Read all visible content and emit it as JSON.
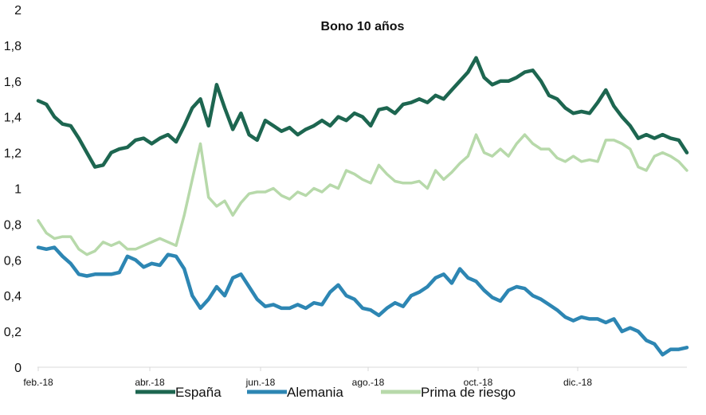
{
  "chart_data": {
    "type": "line",
    "title": "Bono 10 años",
    "xlabel": "",
    "ylabel": "",
    "ylim": [
      0,
      2
    ],
    "yticks": [
      "0",
      "0,2",
      "0,4",
      "0,6",
      "0,8",
      "1",
      "1,2",
      "1,4",
      "1,6",
      "1,8",
      "2"
    ],
    "xticks": [
      "feb.-18",
      "abr.-18",
      "jun.-18",
      "ago.-18",
      "oct.-18",
      "dic.-18"
    ],
    "grid": false,
    "legend": "bottom",
    "series": [
      {
        "name": "España",
        "color": "#1d6650",
        "values": [
          1.49,
          1.47,
          1.4,
          1.36,
          1.35,
          1.28,
          1.2,
          1.12,
          1.13,
          1.2,
          1.22,
          1.23,
          1.27,
          1.28,
          1.25,
          1.28,
          1.3,
          1.26,
          1.35,
          1.45,
          1.5,
          1.35,
          1.58,
          1.45,
          1.33,
          1.42,
          1.3,
          1.27,
          1.38,
          1.35,
          1.32,
          1.34,
          1.3,
          1.33,
          1.35,
          1.38,
          1.35,
          1.4,
          1.38,
          1.42,
          1.4,
          1.35,
          1.44,
          1.45,
          1.42,
          1.47,
          1.48,
          1.5,
          1.48,
          1.52,
          1.5,
          1.55,
          1.6,
          1.65,
          1.73,
          1.62,
          1.58,
          1.6,
          1.6,
          1.62,
          1.65,
          1.66,
          1.6,
          1.52,
          1.5,
          1.45,
          1.42,
          1.43,
          1.42,
          1.48,
          1.55,
          1.46,
          1.4,
          1.35,
          1.28,
          1.3,
          1.28,
          1.3,
          1.28,
          1.27,
          1.2
        ]
      },
      {
        "name": "Alemania",
        "color": "#2d86b3",
        "values": [
          0.67,
          0.66,
          0.67,
          0.62,
          0.58,
          0.52,
          0.51,
          0.52,
          0.52,
          0.52,
          0.53,
          0.62,
          0.6,
          0.56,
          0.58,
          0.57,
          0.63,
          0.62,
          0.55,
          0.4,
          0.33,
          0.38,
          0.45,
          0.4,
          0.5,
          0.52,
          0.45,
          0.38,
          0.34,
          0.35,
          0.33,
          0.33,
          0.35,
          0.33,
          0.36,
          0.35,
          0.42,
          0.46,
          0.4,
          0.38,
          0.33,
          0.32,
          0.29,
          0.33,
          0.36,
          0.34,
          0.4,
          0.42,
          0.45,
          0.5,
          0.52,
          0.47,
          0.55,
          0.5,
          0.48,
          0.43,
          0.39,
          0.37,
          0.43,
          0.45,
          0.44,
          0.4,
          0.38,
          0.35,
          0.32,
          0.28,
          0.26,
          0.28,
          0.27,
          0.27,
          0.25,
          0.27,
          0.2,
          0.22,
          0.2,
          0.15,
          0.13,
          0.07,
          0.1,
          0.1,
          0.11
        ]
      },
      {
        "name": "Prima de riesgo",
        "color": "#b7d9aa",
        "values": [
          0.82,
          0.75,
          0.72,
          0.73,
          0.73,
          0.66,
          0.63,
          0.65,
          0.7,
          0.68,
          0.7,
          0.66,
          0.66,
          0.68,
          0.7,
          0.72,
          0.7,
          0.68,
          0.85,
          1.05,
          1.25,
          0.95,
          0.9,
          0.93,
          0.85,
          0.92,
          0.97,
          0.98,
          0.98,
          1.0,
          0.96,
          0.94,
          0.98,
          0.96,
          1.0,
          0.98,
          1.02,
          1.0,
          1.1,
          1.08,
          1.05,
          1.03,
          1.13,
          1.08,
          1.04,
          1.03,
          1.03,
          1.04,
          1.0,
          1.1,
          1.05,
          1.09,
          1.14,
          1.18,
          1.3,
          1.2,
          1.18,
          1.22,
          1.18,
          1.25,
          1.3,
          1.25,
          1.22,
          1.22,
          1.17,
          1.15,
          1.18,
          1.15,
          1.16,
          1.15,
          1.27,
          1.27,
          1.25,
          1.22,
          1.12,
          1.1,
          1.18,
          1.2,
          1.18,
          1.15,
          1.1
        ]
      }
    ]
  }
}
